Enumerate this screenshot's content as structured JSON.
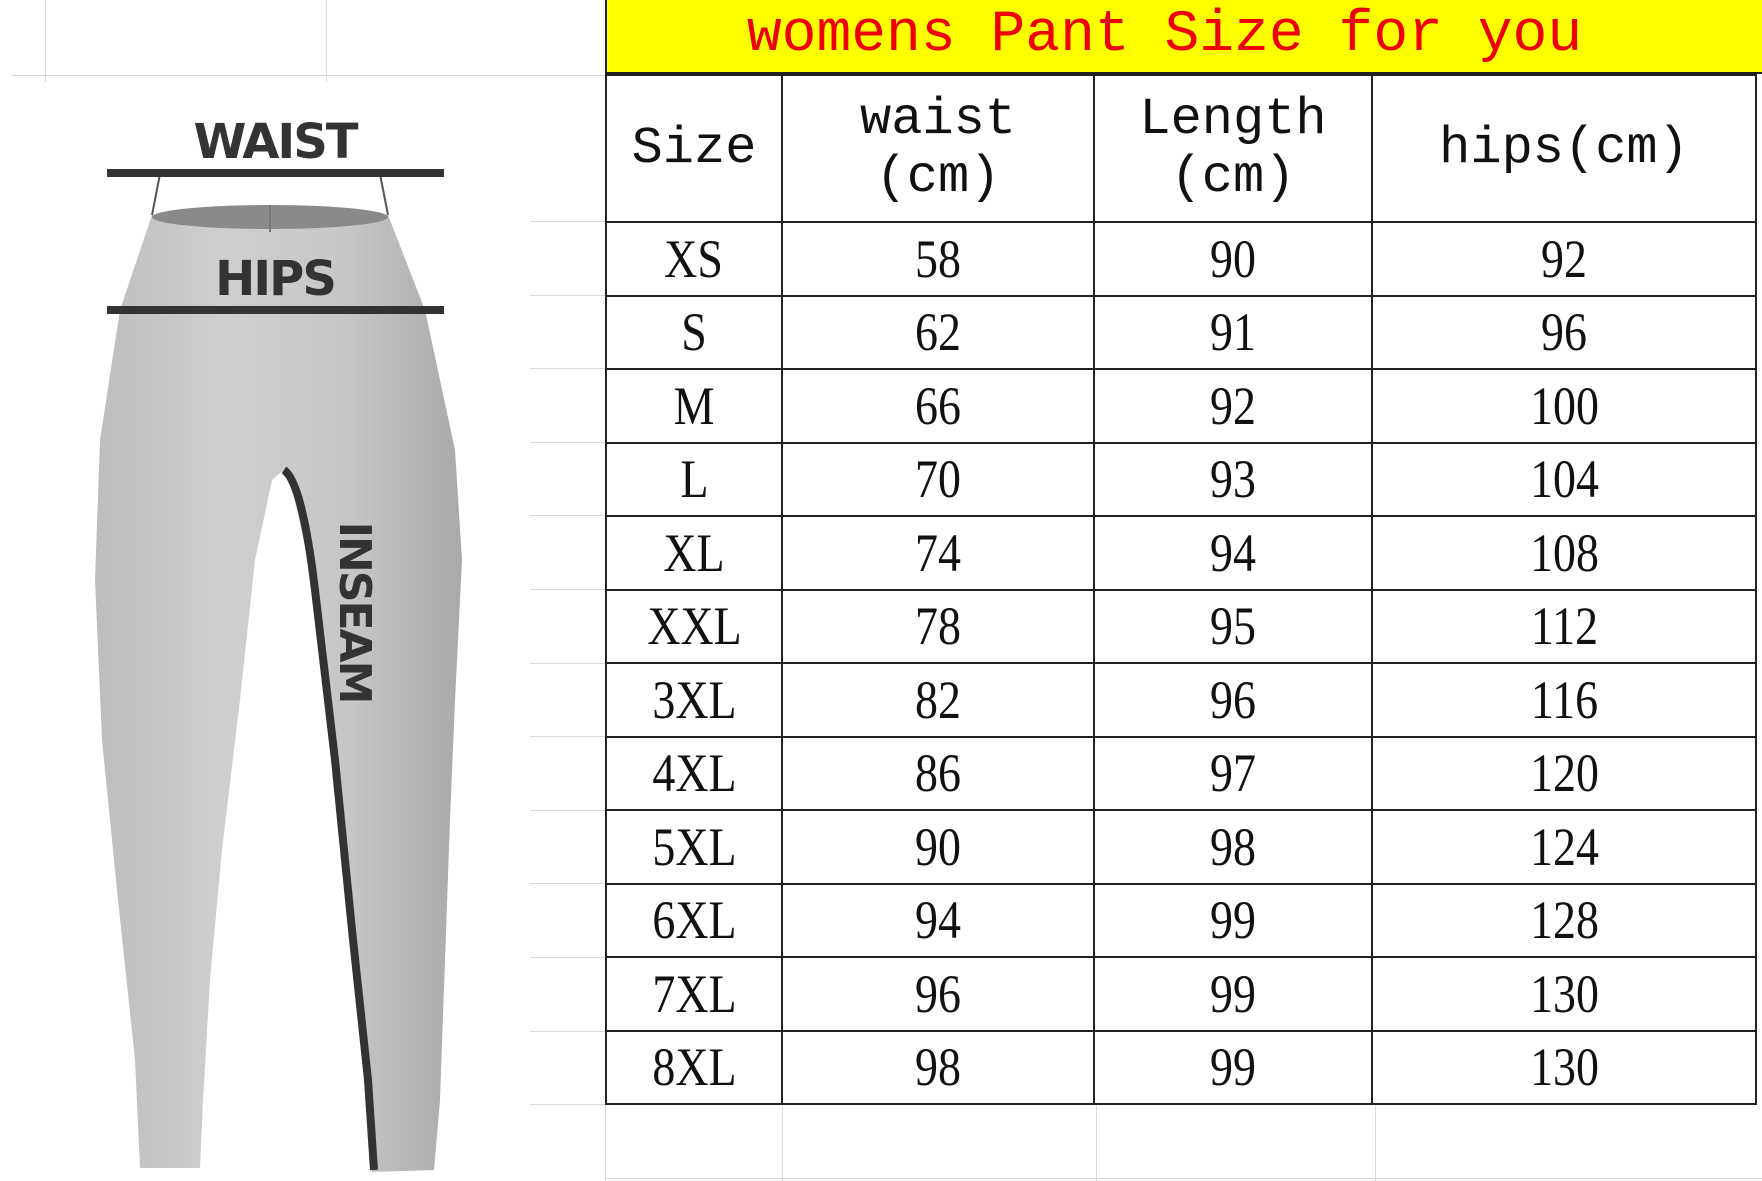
{
  "title": "womens Pant Size for you",
  "diagram": {
    "waist_label": "WAIST",
    "hips_label": "HIPS",
    "inseam_label": "INSEAM"
  },
  "colors": {
    "title_bg": "#ffff00",
    "title_text": "#ee0000"
  },
  "table": {
    "headers": [
      "Size",
      "waist\n(cm)",
      "Length\n(cm)",
      "hips(cm)"
    ],
    "rows": [
      [
        "XS",
        "58",
        "90",
        "92"
      ],
      [
        "S",
        "62",
        "91",
        "96"
      ],
      [
        "M",
        "66",
        "92",
        "100"
      ],
      [
        "L",
        "70",
        "93",
        "104"
      ],
      [
        "XL",
        "74",
        "94",
        "108"
      ],
      [
        "XXL",
        "78",
        "95",
        "112"
      ],
      [
        "3XL",
        "82",
        "96",
        "116"
      ],
      [
        "4XL",
        "86",
        "97",
        "120"
      ],
      [
        "5XL",
        "90",
        "98",
        "124"
      ],
      [
        "6XL",
        "94",
        "99",
        "128"
      ],
      [
        "7XL",
        "96",
        "99",
        "130"
      ],
      [
        "8XL",
        "98",
        "99",
        "130"
      ]
    ]
  }
}
